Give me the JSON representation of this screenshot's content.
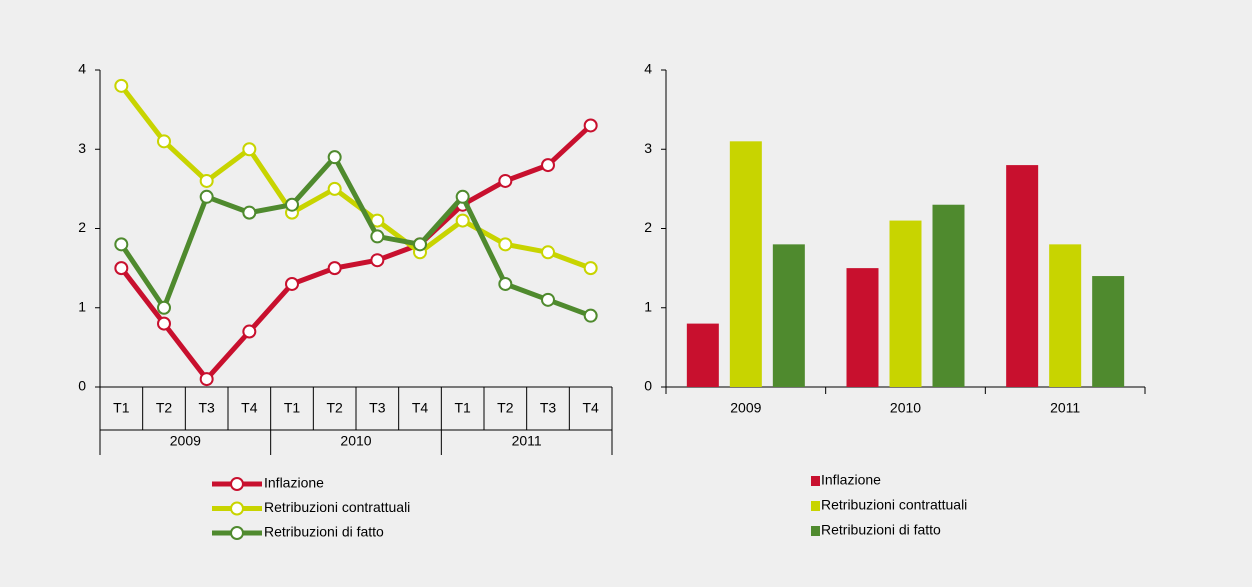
{
  "chart_data": [
    {
      "type": "line",
      "categories": [
        "T1",
        "T2",
        "T3",
        "T4",
        "T1",
        "T2",
        "T3",
        "T4",
        "T1",
        "T2",
        "T3",
        "T4"
      ],
      "groups": [
        "2009",
        "2010",
        "2011"
      ],
      "ylim": [
        0,
        4
      ],
      "yticks": [
        0,
        1,
        2,
        3,
        4
      ],
      "series": [
        {
          "name": "Inflazione",
          "color": "#c8102e",
          "values": [
            1.5,
            0.8,
            0.1,
            0.7,
            1.3,
            1.5,
            1.6,
            1.8,
            2.3,
            2.6,
            2.8,
            3.3
          ]
        },
        {
          "name": "Retribuzioni contrattuali",
          "color": "#c8d400",
          "values": [
            3.8,
            3.1,
            2.6,
            3.0,
            2.2,
            2.5,
            2.1,
            1.7,
            2.1,
            1.8,
            1.7,
            1.5
          ]
        },
        {
          "name": "Retribuzioni di fatto",
          "color": "#4f8a2e",
          "values": [
            1.8,
            1.0,
            2.4,
            2.2,
            2.3,
            2.9,
            1.9,
            1.8,
            2.4,
            1.3,
            1.1,
            0.9
          ]
        }
      ]
    },
    {
      "type": "bar",
      "categories": [
        "2009",
        "2010",
        "2011"
      ],
      "ylim": [
        0,
        4
      ],
      "yticks": [
        0,
        1,
        2,
        3,
        4
      ],
      "series": [
        {
          "name": "Inflazione",
          "color": "#c8102e",
          "values": [
            0.8,
            1.5,
            2.8
          ]
        },
        {
          "name": "Retribuzioni contrattuali",
          "color": "#c8d400",
          "values": [
            3.1,
            2.1,
            1.8
          ]
        },
        {
          "name": "Retribuzioni di fatto",
          "color": "#4f8a2e",
          "values": [
            1.8,
            2.3,
            1.4
          ]
        }
      ]
    }
  ]
}
